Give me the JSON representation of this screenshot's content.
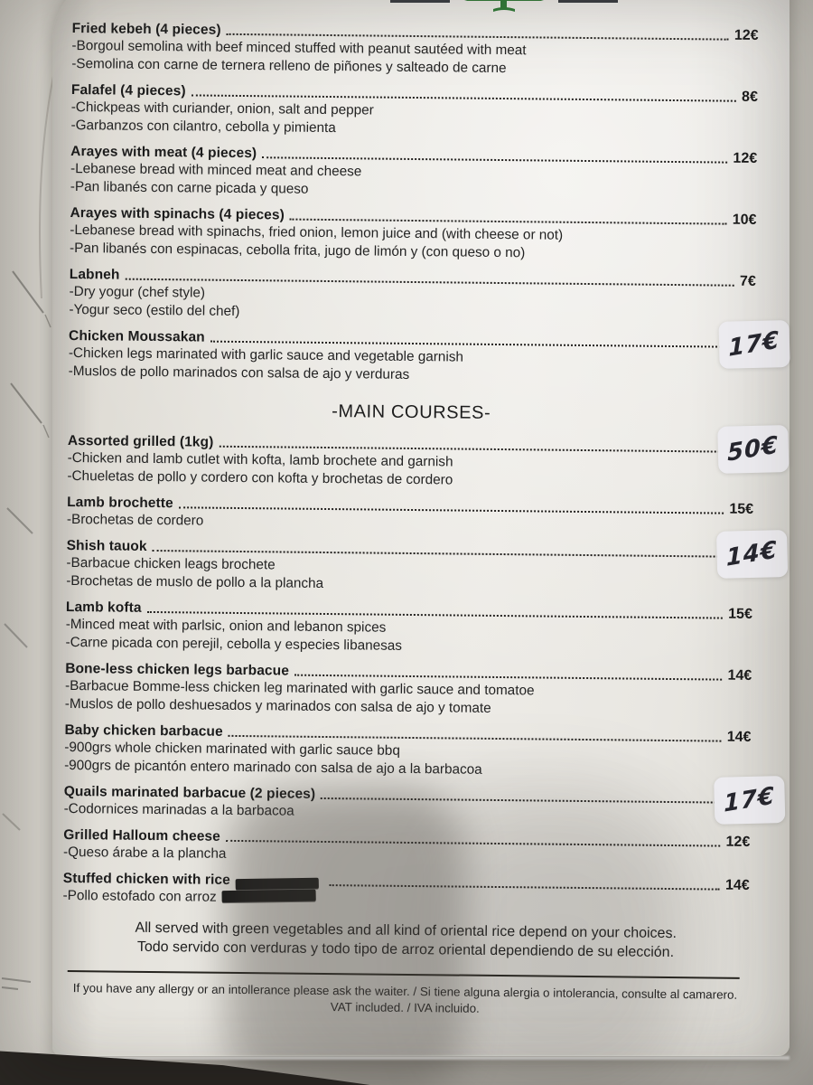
{
  "colors": {
    "paper": "#e9e7e2",
    "ink": "#1b1b1b",
    "logo_green": "#2f7a36",
    "logo_bar": "#373a40",
    "pen_ink": "#26262e",
    "sticker": "#ecebef"
  },
  "logo": {
    "icon": "cedar-tree-icon"
  },
  "menu": {
    "sections": [
      {
        "heading": "",
        "items": [
          {
            "title": "Fried kebeh (4 pieces)",
            "price": "12€",
            "handwritten": false,
            "desc": [
              "-Borgoul semolina with beef minced stuffed with peanut sautéed with meat",
              "-Semolina con carne de ternera relleno de piñones y salteado de carne"
            ]
          },
          {
            "title": "Falafel (4 pieces)",
            "price": "8€",
            "handwritten": false,
            "desc": [
              "-Chickpeas with curiander, onion, salt and pepper",
              "-Garbanzos con cilantro, cebolla y pimienta"
            ]
          },
          {
            "title": "Arayes with meat (4 pieces)",
            "price": "12€",
            "handwritten": false,
            "desc": [
              "-Lebanese bread with minced meat and cheese",
              "-Pan libanés con carne picada y queso"
            ]
          },
          {
            "title": "Arayes with spinachs (4 pieces)",
            "price": "10€",
            "handwritten": false,
            "desc": [
              "-Lebanese bread with spinachs, fried onion, lemon juice and (with cheese or not)",
              "-Pan libanés con espinacas, cebolla frita, jugo de limón y (con queso o no)"
            ]
          },
          {
            "title": "Labneh",
            "price": "7€",
            "handwritten": false,
            "desc": [
              "-Dry yogur (chef style)",
              "-Yogur seco (estilo del chef)"
            ]
          },
          {
            "title": "Chicken Moussakan",
            "price": "17€",
            "handwritten": true,
            "desc": [
              "-Chicken legs marinated with garlic sauce and vegetable garnish",
              "-Muslos de pollo marinados con salsa de ajo y verduras"
            ]
          }
        ]
      },
      {
        "heading": "-MAIN COURSES-",
        "items": [
          {
            "title": "Assorted grilled (1kg)",
            "price": "50€",
            "handwritten": true,
            "desc": [
              "-Chicken and lamb cutlet with kofta, lamb brochete and garnish",
              "-Chueletas de pollo y cordero con kofta y brochetas de cordero"
            ]
          },
          {
            "title": "Lamb brochette",
            "price": "15€",
            "handwritten": false,
            "desc": [
              "-Brochetas de cordero"
            ]
          },
          {
            "title": "Shish tauok",
            "price": "14€",
            "handwritten": true,
            "desc": [
              "-Barbacue chicken leags brochete",
              "-Brochetas de muslo de pollo a la plancha"
            ]
          },
          {
            "title": "Lamb kofta",
            "price": "15€",
            "handwritten": false,
            "desc": [
              "-Minced meat with parlsic, onion and lebanon spices",
              "-Carne picada con perejil, cebolla y especies libanesas"
            ]
          },
          {
            "title": "Bone-less chicken legs barbacue",
            "price": "14€",
            "handwritten": false,
            "desc": [
              "-Barbacue Bomme-less chicken leg marinated with garlic sauce and tomatoe",
              "-Muslos de pollo deshuesados y marinados con salsa de ajo y tomate"
            ]
          },
          {
            "title": "Baby chicken barbacue",
            "price": "14€",
            "handwritten": false,
            "desc": [
              "-900grs whole chicken marinated with garlic sauce bbq",
              "-900grs de picantón entero marinado con salsa de ajo a la barbacoa"
            ]
          },
          {
            "title": "Quails marinated barbacue (2 pieces)",
            "price": "17€",
            "handwritten": true,
            "desc": [
              "-Codornices marinadas a la barbacoa"
            ]
          },
          {
            "title": "Grilled Halloum cheese",
            "price": "12€",
            "handwritten": false,
            "desc": [
              "-Queso árabe a la plancha"
            ]
          },
          {
            "title": "Stuffed chicken with rice",
            "price": "14€",
            "handwritten": false,
            "title_redacted": true,
            "desc": [
              {
                "text": "-Pollo estofado con arroz",
                "redacted": true
              }
            ]
          }
        ]
      }
    ]
  },
  "notes": {
    "en": "All served with green vegetables and all kind of oriental rice depend on your choices.",
    "es": "Todo servido con verduras y todo tipo de arroz oriental dependiendo de su elección."
  },
  "footer": {
    "allergy": "If you have any allergy or an intollerance please ask the waiter. / Si tiene alguna alergia o intolerancia, consulte al camarero.",
    "vat": "VAT included. / IVA incluido."
  }
}
